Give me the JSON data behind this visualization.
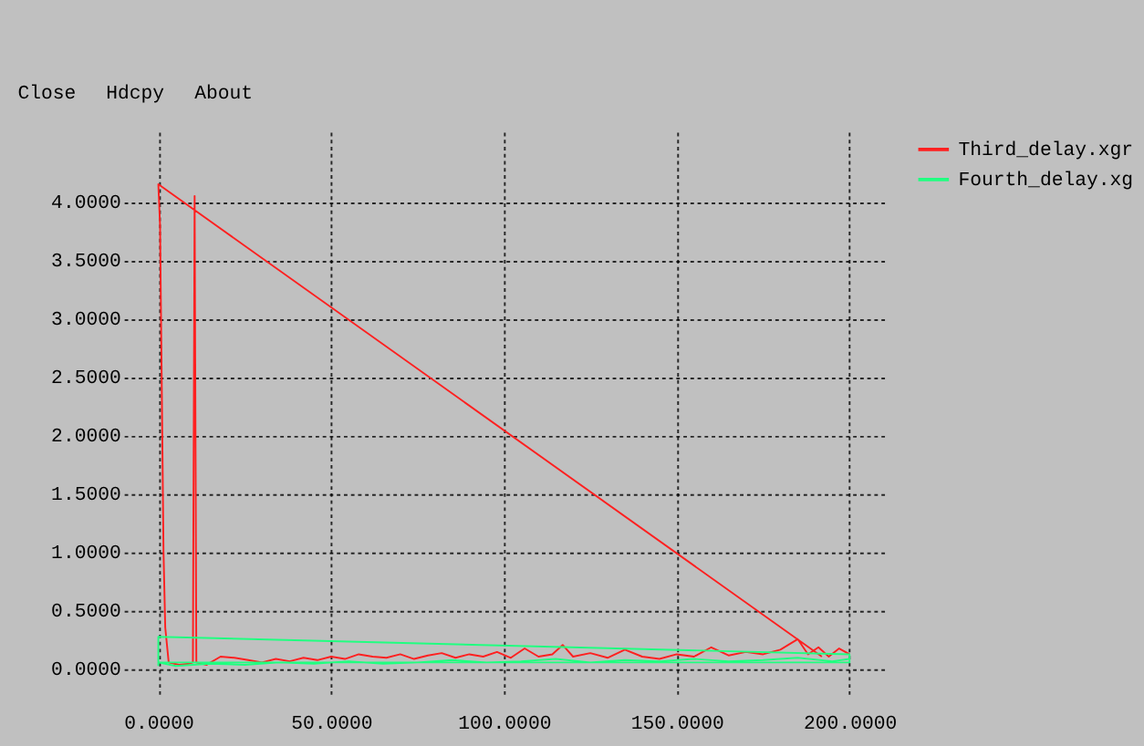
{
  "chart_data": {
    "type": "line",
    "legend": "top right",
    "grid": true,
    "line_style": "solid",
    "marker": "none",
    "annotations": [
      "Close",
      "Hdcpy",
      "About"
    ],
    "xlim": [
      -10,
      210
    ],
    "ylim": [
      -0.25,
      4.6
    ],
    "xticks": [
      {
        "value": 0,
        "label": "0.0000"
      },
      {
        "value": 50,
        "label": "50.0000"
      },
      {
        "value": 100,
        "label": "100.0000"
      },
      {
        "value": 150,
        "label": "150.0000"
      },
      {
        "value": 200,
        "label": "200.0000"
      }
    ],
    "yticks": [
      {
        "value": 0,
        "label": "0.0000"
      },
      {
        "value": 0.5,
        "label": "0.5000"
      },
      {
        "value": 1,
        "label": "1.0000"
      },
      {
        "value": 1.5,
        "label": "1.5000"
      },
      {
        "value": 2,
        "label": "2.0000"
      },
      {
        "value": 2.5,
        "label": "2.5000"
      },
      {
        "value": 3,
        "label": "3.0000"
      },
      {
        "value": 3.5,
        "label": "3.5000"
      },
      {
        "value": 4,
        "label": "4.0000"
      }
    ],
    "series": [
      {
        "name": "Third_delay.xgr",
        "color": "#ff2020",
        "x": [
          192,
          0,
          0.5,
          1.5,
          2,
          3,
          6,
          9,
          10,
          10.5,
          11,
          14,
          18,
          22,
          26,
          30,
          34,
          38,
          42,
          46,
          50,
          54,
          58,
          62,
          66,
          70,
          74,
          78,
          82,
          86,
          90,
          94,
          98,
          102,
          106,
          110,
          114,
          117,
          120,
          125,
          130,
          135,
          140,
          145,
          150,
          155,
          160,
          165,
          170,
          175,
          180,
          185,
          188,
          191,
          194,
          197,
          200
        ],
        "values": [
          0.1,
          4.15,
          3.8,
          1.0,
          0.35,
          0.05,
          0.03,
          0.04,
          0.05,
          4.05,
          0.05,
          0.03,
          0.1,
          0.09,
          0.07,
          0.05,
          0.08,
          0.06,
          0.09,
          0.07,
          0.1,
          0.08,
          0.12,
          0.1,
          0.09,
          0.12,
          0.08,
          0.11,
          0.13,
          0.09,
          0.12,
          0.1,
          0.14,
          0.09,
          0.17,
          0.1,
          0.12,
          0.2,
          0.1,
          0.13,
          0.09,
          0.16,
          0.1,
          0.08,
          0.12,
          0.1,
          0.18,
          0.11,
          0.14,
          0.12,
          0.16,
          0.25,
          0.12,
          0.18,
          0.1,
          0.17,
          0.12
        ]
      },
      {
        "name": "Fourth_delay.xg",
        "color": "#20ff80",
        "x": [
          0,
          0,
          200,
          200,
          0,
          5,
          15,
          25,
          35,
          45,
          55,
          65,
          75,
          85,
          95,
          105,
          115,
          125,
          135,
          145,
          155,
          165,
          175,
          185,
          195,
          200
        ],
        "values": [
          0.02,
          0.27,
          0.12,
          0.05,
          0.05,
          0.02,
          0.04,
          0.03,
          0.05,
          0.04,
          0.06,
          0.04,
          0.05,
          0.07,
          0.05,
          0.06,
          0.08,
          0.05,
          0.07,
          0.06,
          0.08,
          0.06,
          0.07,
          0.09,
          0.06,
          0.08
        ]
      }
    ]
  }
}
